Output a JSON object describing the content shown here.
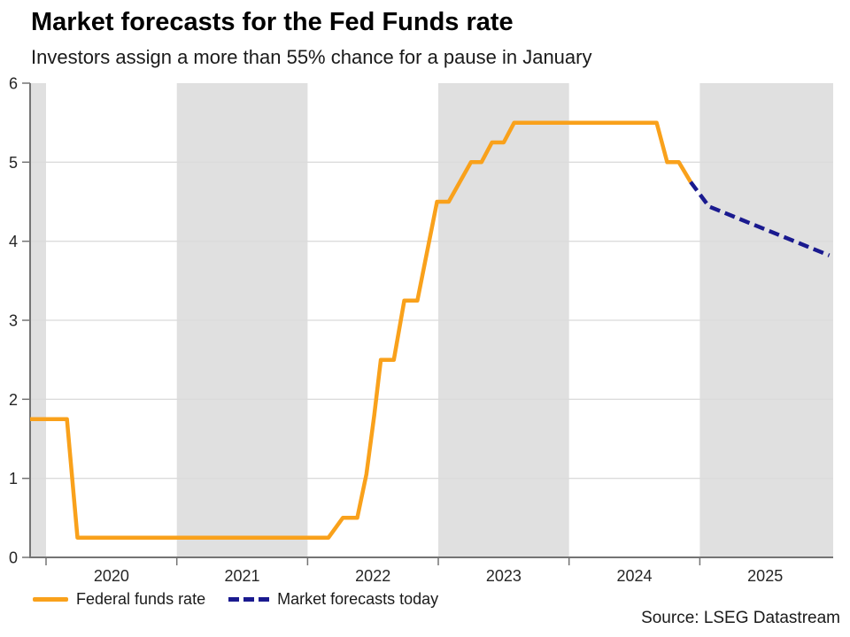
{
  "chart_data": {
    "type": "line",
    "title": "Market forecasts for the Fed Funds rate",
    "subtitle": "Investors assign a more than 55% chance for a pause in January",
    "source": "Source: LSEG Datastream",
    "xlabel": "",
    "ylabel": "",
    "x_axis": {
      "range": [
        2019.878,
        2026.02
      ],
      "ticks": [
        2020,
        2021,
        2022,
        2023,
        2024,
        2025
      ],
      "tick_labels": [
        "2020",
        "2021",
        "2022",
        "2023",
        "2024",
        "2025"
      ]
    },
    "y_axis": {
      "range": [
        0,
        6
      ],
      "ticks": [
        0,
        1,
        2,
        3,
        4,
        5,
        6
      ],
      "tick_labels": [
        "0",
        "1",
        "2",
        "3",
        "4",
        "5",
        "6"
      ]
    },
    "grid": true,
    "grid_color": "#dbdbdb",
    "axis_color": "#747474",
    "tick_label_color": "#262626",
    "background_bands": {
      "color": "#e0e0e0",
      "intervals": [
        [
          2019.878,
          2020
        ],
        [
          2021,
          2022
        ],
        [
          2023,
          2024
        ],
        [
          2025,
          2026.02
        ]
      ]
    },
    "legend_position": "bottom-left",
    "series": [
      {
        "name": "Federal funds rate",
        "color": "#F9A11B",
        "style": "solid",
        "points": [
          [
            2019.878,
            1.75
          ],
          [
            2020.16,
            1.75
          ],
          [
            2020.24,
            0.25
          ],
          [
            2022.16,
            0.25
          ],
          [
            2022.27,
            0.5
          ],
          [
            2022.38,
            0.5
          ],
          [
            2022.45,
            1.05
          ],
          [
            2022.51,
            1.8
          ],
          [
            2022.56,
            2.5
          ],
          [
            2022.66,
            2.5
          ],
          [
            2022.74,
            3.25
          ],
          [
            2022.84,
            3.25
          ],
          [
            2022.99,
            4.5
          ],
          [
            2023.08,
            4.5
          ],
          [
            2023.25,
            5.0
          ],
          [
            2023.33,
            5.0
          ],
          [
            2023.41,
            5.25
          ],
          [
            2023.5,
            5.25
          ],
          [
            2023.58,
            5.5
          ],
          [
            2024.67,
            5.5
          ],
          [
            2024.75,
            5.0
          ],
          [
            2024.84,
            5.0
          ],
          [
            2024.93,
            4.75
          ]
        ]
      },
      {
        "name": "Market forecasts today",
        "color": "#1A1A8F",
        "style": "dashed",
        "points": [
          [
            2024.93,
            4.75
          ],
          [
            2025.07,
            4.44
          ],
          [
            2025.99,
            3.82
          ]
        ]
      }
    ]
  }
}
